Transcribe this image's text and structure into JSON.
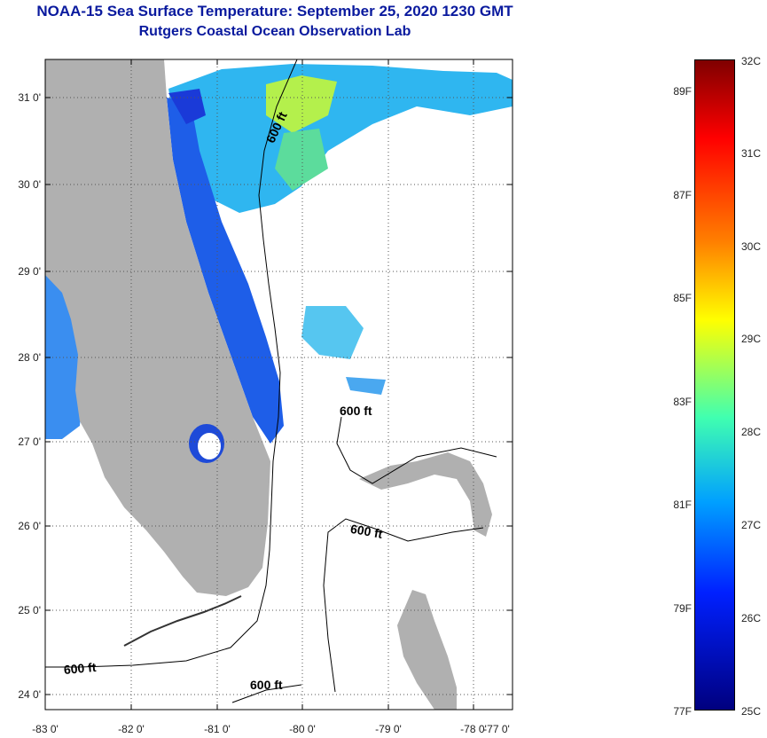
{
  "title": {
    "line1": "NOAA-15 Sea Surface Temperature:  September 25, 2020 1230 GMT",
    "line2": "Rutgers Coastal Ocean Observation Lab"
  },
  "axes": {
    "lat_labels": [
      "31 0'",
      "30 0'",
      "29 0'",
      "28 0'",
      "27 0'",
      "26 0'",
      "25 0'",
      "24 0'"
    ],
    "lon_labels": [
      "-83 0'",
      "-82 0'",
      "-81 0'",
      "-80 0'",
      "-79 0'",
      "-78 0'",
      "-77 0'"
    ]
  },
  "isobath_labels": [
    "600 ft",
    "600 ft",
    "600 ft",
    "600 ft",
    "600 ft"
  ],
  "colorbar": {
    "fahrenheit": [
      "89F",
      "87F",
      "85F",
      "83F",
      "81F",
      "79F",
      "77F"
    ],
    "celsius": [
      "32C",
      "31C",
      "30C",
      "29C",
      "28C",
      "27C",
      "26C",
      "25C"
    ]
  },
  "colors": {
    "land": "#b0b0b0",
    "title": "#0a1a9e",
    "cold": "#00007f",
    "hot": "#7f0000"
  }
}
